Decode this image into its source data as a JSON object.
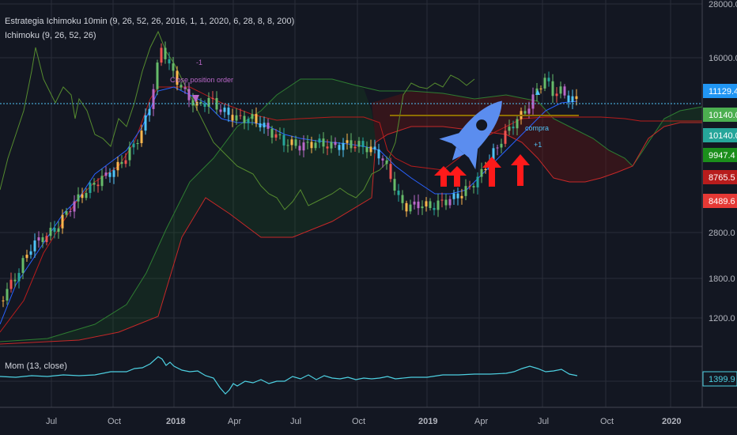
{
  "legend": {
    "strategy": "Estrategia Ichimoku 10min (9, 26, 52, 26, 2016, 1, 1, 2020, 6, 28, 8, 8, 200)",
    "ichimoku": "Ichimoku (9, 26, 52, 26)",
    "momentum": "Mom (13, close)"
  },
  "price_axis": [
    "28000.0",
    "16000.0",
    "11129.4",
    "10140.0",
    "10140.0",
    "9947.4",
    "8765.5",
    "8489.6",
    "2800.0",
    "1800.0",
    "1200.0"
  ],
  "mom_axis_value": "1399.9",
  "time_axis": [
    "Jul",
    "Oct",
    "2018",
    "Apr",
    "Jul",
    "Oct",
    "2019",
    "Apr",
    "Jul",
    "Oct",
    "2020"
  ],
  "annotations": {
    "close_order": "Close position order",
    "close_order_count": "-1",
    "buy_order": "compra",
    "buy_count": "+1"
  },
  "colors": {
    "background": "#131722",
    "grid": "#2a2e39",
    "candle_up": "#26a69a",
    "candle_down": "#ef5350",
    "tenkan": "#2962ff",
    "kijun": "#b71c1c",
    "chikou": "#558b2f",
    "cloud_green": "#1b5e20",
    "cloud_red": "#5d1414",
    "momentum": "#4dd0e1",
    "arrow": "#ff1a1a",
    "rocket": "#5b8def"
  },
  "price_tags": [
    {
      "label": "11129.4",
      "color": "#2196f3"
    },
    {
      "label": "10140.0",
      "color": "#4caf50"
    },
    {
      "label": "10140.0",
      "color": "#26a69a"
    },
    {
      "label": "9947.4",
      "color": "#1b8e1b"
    },
    {
      "label": "8765.5",
      "color": "#b71c1c"
    },
    {
      "label": "8489.6",
      "color": "#e53935"
    }
  ]
}
